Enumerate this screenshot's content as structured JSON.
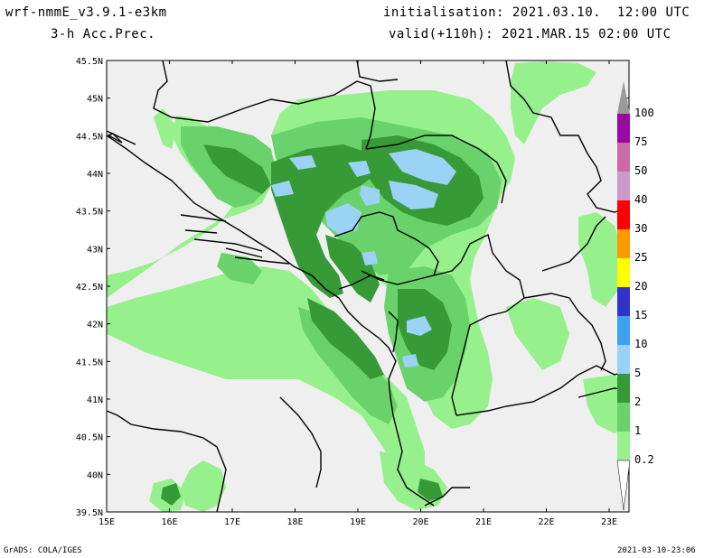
{
  "header": {
    "model": "wrf-nmmE_v3.9.1-e3km",
    "field": "3-h Acc.Prec.",
    "initialisation": "initialisation: 2021.03.10.  12:00 UTC",
    "valid": "valid(+110h): 2021.MAR.15 02:00 UTC"
  },
  "map": {
    "lon_ticks": [
      "15E",
      "16E",
      "17E",
      "18E",
      "19E",
      "20E",
      "21E",
      "22E",
      "23E"
    ],
    "lat_ticks": [
      "45.5N",
      "45N",
      "44.5N",
      "44N",
      "43.5N",
      "43N",
      "42.5N",
      "42N",
      "41.5N",
      "41N",
      "40.5N",
      "40N",
      "39.5N"
    ],
    "colors": {
      "background": "#efefef",
      "sea": "#efefef",
      "c0_2": "#96f08c",
      "c1": "#6ad26a",
      "c2": "#369a36",
      "c5": "#9bd3f7",
      "coast": "#000000"
    }
  },
  "colorbar": {
    "labels": [
      "100",
      "75",
      "50",
      "40",
      "30",
      "25",
      "20",
      "15",
      "10",
      "5",
      "2",
      "1",
      "0.2"
    ],
    "colors": [
      "#9a9a9a",
      "#9b0aa0",
      "#cb6aa6",
      "#cc99cc",
      "#ff0000",
      "#ff9900",
      "#ffff00",
      "#3232c8",
      "#3da0f0",
      "#96d2fa",
      "#369a36",
      "#6ad26a",
      "#96f08c"
    ]
  },
  "footer": {
    "left": "GrADS: COLA/IGES",
    "right": "2021-03-10-23:06"
  }
}
